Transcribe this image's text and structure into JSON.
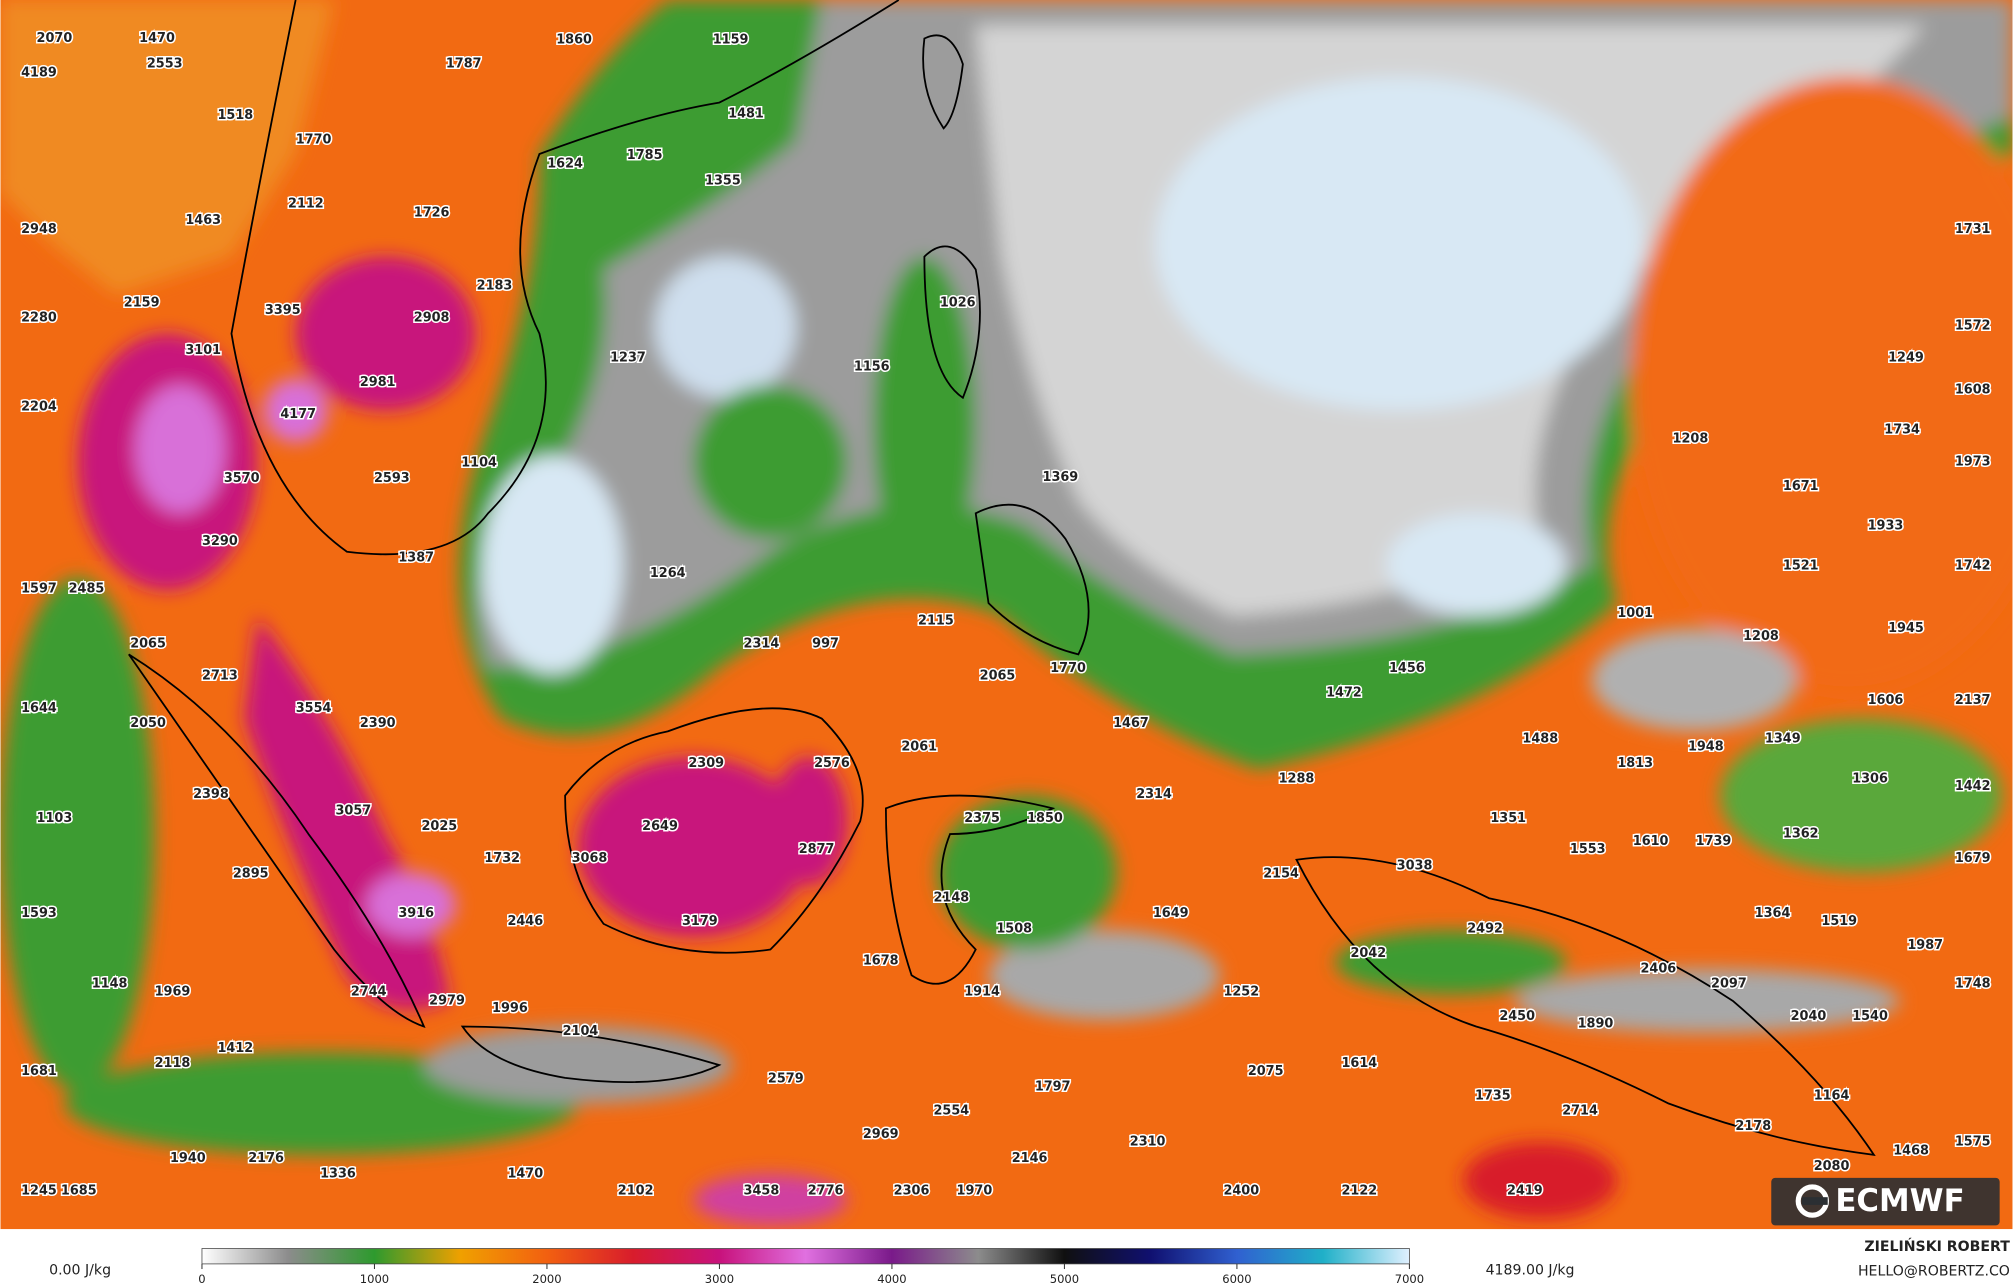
{
  "map": {
    "labels": [
      2070,
      1470,
      1860,
      1159,
      4189,
      2553,
      1787,
      1518,
      1481,
      1770,
      1785,
      1624,
      1355,
      2112,
      1726,
      1463,
      2948,
      1731,
      2183,
      1026,
      2159,
      3395,
      2908,
      2280,
      1572,
      3101,
      1237,
      1249,
      1156,
      2981,
      1608,
      2204,
      4177,
      1734,
      1208,
      1104,
      1973,
      1369,
      3570,
      2593,
      1671,
      1933,
      3290,
      1387,
      1521,
      1742,
      1264,
      1597,
      2485,
      1001,
      2115,
      1945,
      1208,
      2314,
      997,
      2065,
      2713,
      2065,
      1770,
      1456,
      1472,
      1606,
      2137,
      1644,
      3554,
      2050,
      2390,
      1467,
      2061,
      1488,
      1349,
      2309,
      2576,
      1813,
      1948,
      1288,
      1306,
      2398,
      2314,
      1442,
      3057,
      2375,
      1850,
      1103,
      2649,
      2025,
      1351,
      1362,
      1553,
      1610,
      1739,
      3068,
      2877,
      1732,
      3038,
      2154,
      1679,
      2895,
      2148,
      1593,
      3916,
      1649,
      1364,
      1519,
      3179,
      2446,
      1508,
      2492,
      1987,
      2042,
      1678,
      2406,
      2097,
      1748,
      1148,
      1969,
      2744,
      1914,
      1252,
      2979,
      1996,
      2450,
      2040,
      1540,
      1890,
      2104,
      1412,
      1614,
      2118,
      1681,
      2075,
      2579,
      1797,
      1735,
      1164,
      2554,
      2714,
      2178,
      2969,
      2310,
      1575,
      1468,
      2146,
      1940,
      2176,
      2080,
      1336,
      1470,
      3458,
      2776,
      2306,
      1970,
      2400,
      2122,
      2419,
      2102,
      1245,
      1685
    ]
  },
  "legend": {
    "min_label": "0.00 J/kg",
    "max_label": "4189.00 J/kg",
    "ticks": [
      0,
      1000,
      2000,
      3000,
      4000,
      5000,
      6000,
      7000
    ],
    "colors": [
      "#ffffff",
      "#8c8c8c",
      "#2e9a2e",
      "#f0a000",
      "#f26010",
      "#d81c2c",
      "#c8127c",
      "#e070e0",
      "#7a1a8a",
      "#8c8c8c",
      "#101010",
      "#101070",
      "#3060d0",
      "#20b0c8",
      "#e0f0ff"
    ]
  },
  "credit": {
    "author": "ZIELIŃSKI ROBERT",
    "email": "HELLO@ROBERTZ.CO"
  },
  "logo": "ECMWF"
}
